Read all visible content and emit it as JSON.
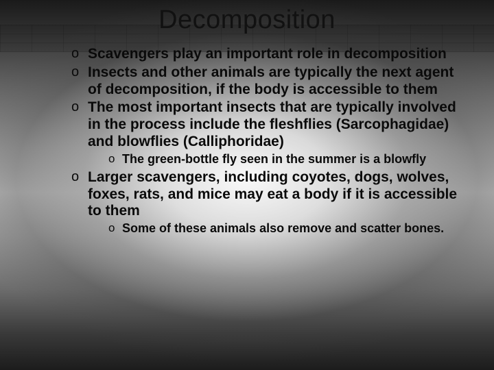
{
  "title": "Decomposition",
  "bullets": {
    "b1": "Scavengers play an important role in decomposition",
    "b2": "Insects and other animals are typically the next agent of decomposition, if the body is accessible to them",
    "b3": "The most important insects that are typically involved in the process include the fleshflies (Sarcophagidae) and blowflies (Calliphoridae)",
    "b3_sub": "The green-bottle fly seen in the summer is a blowfly",
    "b4": "Larger scavengers, including coyotes, dogs, wolves, foxes, rats, and mice may eat a body if it is accessible to them",
    "b4_sub": "Some of these animals also remove and scatter bones."
  },
  "style": {
    "title_fontsize": 38,
    "bullet_fontsize": 21,
    "subbullet_fontsize": 18,
    "text_color": "#0a0a0a",
    "bullet_marker": "o",
    "font_family": "Arial",
    "font_weight_body": 700,
    "background_gradient": [
      "#1a1a1a",
      "#6d6d6d",
      "#b8b8b8",
      "#6d6d6d",
      "#1c1c1c"
    ],
    "slide_width": 720,
    "slide_height": 540
  }
}
